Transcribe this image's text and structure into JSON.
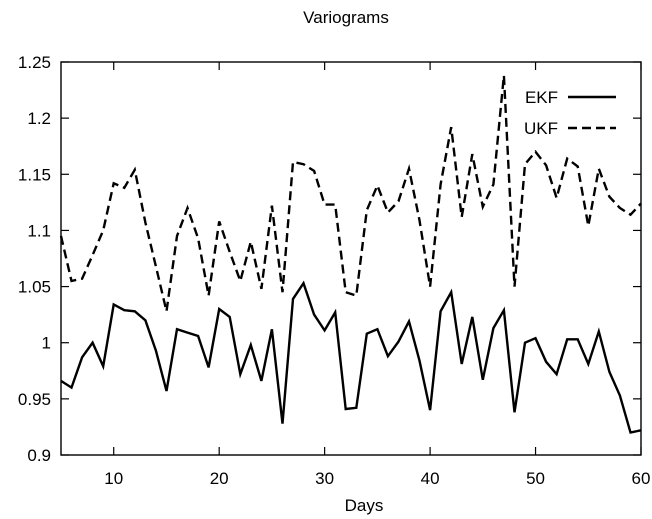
{
  "chart_data": {
    "type": "line",
    "title": "Variograms",
    "xlabel": "Days",
    "ylabel": "",
    "xlim": [
      5,
      60
    ],
    "ylim": [
      0.9,
      1.25
    ],
    "xticks": [
      10,
      20,
      30,
      40,
      50,
      60
    ],
    "xtick_labels": [
      "10",
      "20",
      "30",
      "40",
      "50",
      "60"
    ],
    "yticks": [
      0.9,
      0.95,
      1.0,
      1.05,
      1.1,
      1.15,
      1.2,
      1.25
    ],
    "ytick_labels": [
      "0.9",
      "0.95",
      "1",
      "1.05",
      "1.1",
      "1.15",
      "1.2",
      "1.25"
    ],
    "grid": false,
    "legend_position": "top-right",
    "x": [
      5,
      6,
      7,
      8,
      9,
      10,
      11,
      12,
      13,
      14,
      15,
      16,
      17,
      18,
      19,
      20,
      21,
      22,
      23,
      24,
      25,
      26,
      27,
      28,
      29,
      30,
      31,
      32,
      33,
      34,
      35,
      36,
      37,
      38,
      39,
      40,
      41,
      42,
      43,
      44,
      45,
      46,
      47,
      48,
      49,
      50,
      51,
      52,
      53,
      54,
      55,
      56,
      57,
      58,
      59,
      60
    ],
    "series": [
      {
        "name": "EKF",
        "style": "solid",
        "values": [
          0.966,
          0.96,
          0.987,
          1.0,
          0.979,
          1.034,
          1.029,
          1.028,
          1.02,
          0.993,
          0.957,
          1.012,
          1.009,
          1.006,
          0.978,
          1.03,
          1.023,
          0.972,
          0.998,
          0.966,
          1.012,
          0.928,
          1.039,
          1.053,
          1.025,
          1.011,
          1.027,
          0.941,
          0.942,
          1.008,
          1.012,
          0.988,
          1.001,
          1.019,
          0.984,
          0.94,
          1.028,
          1.045,
          0.981,
          1.023,
          0.967,
          1.013,
          1.029,
          0.938,
          1.0,
          1.004,
          0.983,
          0.972,
          1.003,
          1.003,
          0.981,
          1.01,
          0.974,
          0.953,
          0.92,
          0.922
        ]
      },
      {
        "name": "UKF",
        "style": "dashed",
        "values": [
          1.095,
          1.055,
          1.057,
          1.078,
          1.1,
          1.142,
          1.138,
          1.154,
          1.107,
          1.068,
          1.028,
          1.095,
          1.12,
          1.093,
          1.042,
          1.108,
          1.081,
          1.055,
          1.09,
          1.048,
          1.122,
          1.045,
          1.161,
          1.159,
          1.153,
          1.123,
          1.123,
          1.045,
          1.042,
          1.118,
          1.14,
          1.116,
          1.126,
          1.155,
          1.109,
          1.05,
          1.141,
          1.192,
          1.112,
          1.168,
          1.121,
          1.141,
          1.238,
          1.05,
          1.159,
          1.17,
          1.158,
          1.129,
          1.164,
          1.157,
          1.104,
          1.155,
          1.13,
          1.12,
          1.114,
          1.124
        ]
      }
    ],
    "line_color": "#000000"
  }
}
